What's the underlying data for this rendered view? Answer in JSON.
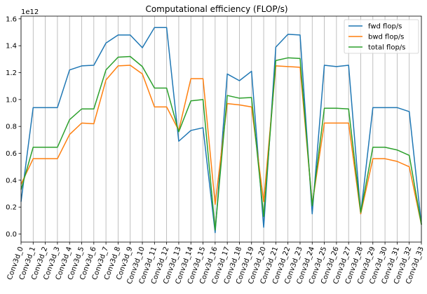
{
  "chart_data": {
    "type": "line",
    "title": "Computational efficiency (FLOP/s)",
    "xlabel": "",
    "ylabel": "",
    "y_offset_label": "1e12",
    "y_scale": 1000000000000.0,
    "categories": [
      "Conv3d_0",
      "Conv3d_1",
      "Conv3d_2",
      "Conv3d_3",
      "Conv3d_4",
      "Conv3d_5",
      "Conv3d_6",
      "Conv3d_7",
      "Conv3d_8",
      "Conv3d_9",
      "Conv3d_10",
      "Conv3d_11",
      "Conv3d_12",
      "Conv3d_13",
      "Conv3d_14",
      "Conv3d_15",
      "Conv3d_16",
      "Conv3d_17",
      "Conv3d_18",
      "Conv3d_19",
      "Conv3d_20",
      "Conv3d_21",
      "Conv3d_22",
      "Conv3d_23",
      "Conv3d_24",
      "Conv3d_25",
      "Conv3d_26",
      "Conv3d_27",
      "Conv3d_28",
      "Conv3d_29",
      "Conv3d_30",
      "Conv3d_31",
      "Conv3d_32",
      "Conv3d_33"
    ],
    "ylim": [
      -0.06,
      1.62
    ],
    "yticks": [
      0.0,
      0.2,
      0.4,
      0.6,
      0.8,
      1.0,
      1.2,
      1.4,
      1.6
    ],
    "ytick_labels": [
      "0.0",
      "0.2",
      "0.4",
      "0.6",
      "0.8",
      "1.0",
      "1.2",
      "1.4",
      "1.6"
    ],
    "grid_x": true,
    "grid_y": false,
    "legend_position": "top-right",
    "series": [
      {
        "name": "fwd flop/s",
        "color": "#1f77b4",
        "values": [
          0.24,
          0.94,
          0.94,
          0.94,
          1.22,
          1.25,
          1.255,
          1.42,
          1.48,
          1.48,
          1.385,
          1.535,
          1.535,
          0.69,
          0.77,
          0.79,
          0.01,
          1.19,
          1.14,
          1.21,
          0.05,
          1.39,
          1.485,
          1.48,
          0.15,
          1.255,
          1.245,
          1.255,
          0.15,
          0.94,
          0.94,
          0.94,
          0.91,
          0.07
        ]
      },
      {
        "name": "bwd flop/s",
        "color": "#ff7f0e",
        "values": [
          0.37,
          0.56,
          0.56,
          0.56,
          0.74,
          0.825,
          0.82,
          1.145,
          1.25,
          1.255,
          1.19,
          0.945,
          0.945,
          0.77,
          1.155,
          1.155,
          0.22,
          0.97,
          0.96,
          0.945,
          0.24,
          1.25,
          1.245,
          1.24,
          0.22,
          0.825,
          0.825,
          0.825,
          0.15,
          0.56,
          0.56,
          0.54,
          0.5,
          0.07
        ]
      },
      {
        "name": "total flop/s",
        "color": "#2ca02c",
        "values": [
          0.33,
          0.645,
          0.645,
          0.645,
          0.85,
          0.93,
          0.93,
          1.22,
          1.315,
          1.32,
          1.245,
          1.085,
          1.085,
          0.76,
          0.99,
          1.0,
          0.03,
          1.03,
          1.01,
          1.015,
          0.13,
          1.29,
          1.31,
          1.305,
          0.21,
          0.935,
          0.935,
          0.93,
          0.16,
          0.645,
          0.645,
          0.625,
          0.585,
          0.07
        ]
      }
    ]
  }
}
